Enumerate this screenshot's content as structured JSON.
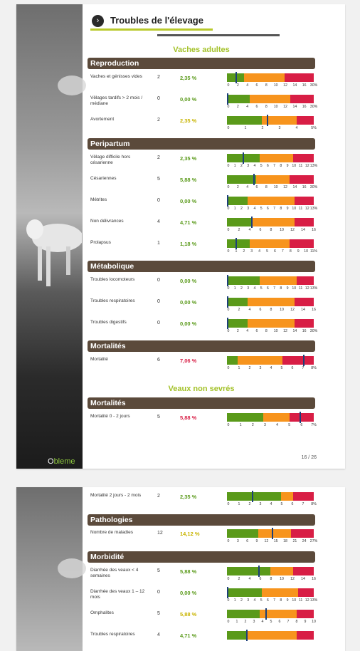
{
  "header": {
    "title": "Troubles de l'élevage",
    "arrow": "›"
  },
  "logo": {
    "prefix": "O",
    "suffix": "bleme"
  },
  "page_number": "16 / 26",
  "groups": {
    "adults": "Vaches adultes",
    "calves": "Veaux non sevrés"
  },
  "sections": {
    "reproduction": "Reproduction",
    "peripartum": "Peripartum",
    "metabolique": "Métabolique",
    "mortalites": "Mortalités",
    "mortalites_veaux": "Mortalités",
    "pathologies": "Pathologies",
    "morbidite": "Morbidité"
  },
  "rows": [
    {
      "label": "Vaches et génisses vides",
      "count": "2",
      "pct": "2,35 %",
      "color": "green",
      "scale": [
        30,
        0
      ],
      "zones": [
        20,
        46,
        34
      ],
      "marker": 10,
      "ticks": [
        "0",
        "2",
        "4",
        "6",
        "8",
        "10",
        "12",
        "14",
        "16",
        "30%"
      ]
    },
    {
      "label": "Vêlages tardifs > 2 mois / médiane",
      "count": "0",
      "pct": "0,00 %",
      "color": "green",
      "scale": [
        30,
        0
      ],
      "zones": [
        26,
        47,
        27
      ],
      "marker": 0,
      "ticks": [
        "0",
        "2",
        "4",
        "6",
        "8",
        "10",
        "12",
        "14",
        "16",
        "30%"
      ]
    },
    {
      "label": "Avortement",
      "count": "2",
      "pct": "2,35 %",
      "color": "yellow",
      "scale": [
        3,
        0
      ],
      "zones": [
        40,
        40,
        20
      ],
      "marker": 46,
      "ticks": [
        "0",
        "1",
        "2",
        "3",
        "4",
        "5%"
      ]
    },
    {
      "label": "Vêlage difficile hors césarienne",
      "count": "2",
      "pct": "2,35 %",
      "color": "green",
      "scale": [
        12,
        0
      ],
      "zones": [
        38,
        38,
        24
      ],
      "marker": 18,
      "ticks": [
        "0",
        "1",
        "2",
        "3",
        "4",
        "5",
        "6",
        "7",
        "8",
        "9",
        "10",
        "11",
        "12",
        "13%"
      ]
    },
    {
      "label": "Césariennes",
      "count": "5",
      "pct": "5,88 %",
      "color": "green",
      "scale": [
        30,
        0
      ],
      "zones": [
        34,
        38,
        28
      ],
      "marker": 30,
      "ticks": [
        "0",
        "2",
        "4",
        "6",
        "8",
        "10",
        "12",
        "14",
        "16",
        "30%"
      ]
    },
    {
      "label": "Métrites",
      "count": "0",
      "pct": "0,00 %",
      "color": "green",
      "scale": [
        12,
        0
      ],
      "zones": [
        24,
        54,
        22
      ],
      "marker": 0,
      "ticks": [
        "0",
        "1",
        "2",
        "3",
        "4",
        "5",
        "6",
        "7",
        "8",
        "9",
        "10",
        "11",
        "12",
        "13%"
      ]
    },
    {
      "label": "Non délivrances",
      "count": "4",
      "pct": "4,71 %",
      "color": "green",
      "scale": [
        16,
        0
      ],
      "zones": [
        28,
        50,
        22
      ],
      "marker": 28,
      "ticks": [
        "0",
        "2",
        "4",
        "6",
        "8",
        "10",
        "12",
        "14",
        "16"
      ]
    },
    {
      "label": "Prolapsus",
      "count": "1",
      "pct": "1,18 %",
      "color": "green",
      "scale": [
        11,
        0
      ],
      "zones": [
        26,
        46,
        28
      ],
      "marker": 10,
      "ticks": [
        "0",
        "1",
        "2",
        "3",
        "4",
        "5",
        "6",
        "7",
        "8",
        "9",
        "10",
        "11%"
      ]
    },
    {
      "label": "Troubles locomoteurs",
      "count": "0",
      "pct": "0,00 %",
      "color": "green",
      "scale": [
        12,
        0
      ],
      "zones": [
        38,
        42,
        20
      ],
      "marker": 0,
      "ticks": [
        "0",
        "1",
        "2",
        "3",
        "4",
        "5",
        "6",
        "7",
        "8",
        "9",
        "10",
        "11",
        "12",
        "13%"
      ]
    },
    {
      "label": "Troubles respiratoires",
      "count": "0",
      "pct": "0,00 %",
      "color": "green",
      "scale": [
        16,
        0
      ],
      "zones": [
        24,
        54,
        22
      ],
      "marker": 0,
      "ticks": [
        "0",
        "2",
        "4",
        "6",
        "8",
        "10",
        "12",
        "14",
        "16"
      ]
    },
    {
      "label": "Troubles digestifs",
      "count": "0",
      "pct": "0,00 %",
      "color": "green",
      "scale": [
        30,
        0
      ],
      "zones": [
        24,
        54,
        22
      ],
      "marker": 0,
      "ticks": [
        "0",
        "2",
        "4",
        "6",
        "8",
        "10",
        "12",
        "14",
        "16",
        "30%"
      ]
    },
    {
      "label": "Mortalité",
      "count": "6",
      "pct": "7,06 %",
      "color": "red",
      "scale": [
        8,
        0
      ],
      "zones": [
        12,
        52,
        36
      ],
      "marker": 88,
      "ticks": [
        "0",
        "1",
        "2",
        "3",
        "4",
        "5",
        "6",
        "7",
        "8%"
      ]
    },
    {
      "label": "Mortalité 0 - 2 jours",
      "count": "5",
      "pct": "5,88 %",
      "color": "red",
      "scale": [
        7,
        0
      ],
      "zones": [
        42,
        30,
        28
      ],
      "marker": 84,
      "ticks": [
        "0",
        "1",
        "2",
        "3",
        "4",
        "5",
        "6",
        "7%"
      ]
    },
    {
      "label": "Mortalité 2 jours - 2 mois",
      "count": "2",
      "pct": "2,35 %",
      "color": "green",
      "scale": [
        8,
        0
      ],
      "zones": [
        62,
        14,
        24
      ],
      "marker": 29,
      "ticks": [
        "0",
        "1",
        "2",
        "3",
        "4",
        "5",
        "6",
        "7",
        "8%"
      ]
    },
    {
      "label": "Nombre de maladies",
      "count": "12",
      "pct": "14,12 %",
      "color": "yellow",
      "scale": [
        27,
        0
      ],
      "zones": [
        36,
        38,
        26
      ],
      "marker": 52,
      "ticks": [
        "0",
        "3",
        "6",
        "9",
        "12",
        "15",
        "18",
        "21",
        "24",
        "27%"
      ]
    },
    {
      "label": "Diarrhée des veaux < 4 semaines",
      "count": "5",
      "pct": "5,88 %",
      "color": "green",
      "scale": [
        16,
        0
      ],
      "zones": [
        50,
        26,
        24
      ],
      "marker": 36,
      "ticks": [
        "0",
        "2",
        "4",
        "6",
        "8",
        "10",
        "12",
        "14",
        "16"
      ]
    },
    {
      "label": "Diarrhée des veaux 1 – 12 mois",
      "count": "0",
      "pct": "0,00 %",
      "color": "green",
      "scale": [
        12,
        0
      ],
      "zones": [
        40,
        42,
        18
      ],
      "marker": 0,
      "ticks": [
        "0",
        "1",
        "2",
        "3",
        "4",
        "5",
        "6",
        "7",
        "8",
        "9",
        "10",
        "11",
        "12",
        "13%"
      ]
    },
    {
      "label": "Omphalites",
      "count": "5",
      "pct": "5,88 %",
      "color": "yellow",
      "scale": [
        10,
        0
      ],
      "zones": [
        38,
        42,
        20
      ],
      "marker": 44,
      "ticks": [
        "0",
        "1",
        "2",
        "3",
        "4",
        "5",
        "6",
        "7",
        "8",
        "9",
        "10"
      ]
    },
    {
      "label": "Troubles respiratoires",
      "count": "4",
      "pct": "4,71 %",
      "color": "green",
      "scale": [
        16,
        0
      ],
      "zones": [
        22,
        58,
        20
      ],
      "marker": 22,
      "ticks": []
    }
  ]
}
